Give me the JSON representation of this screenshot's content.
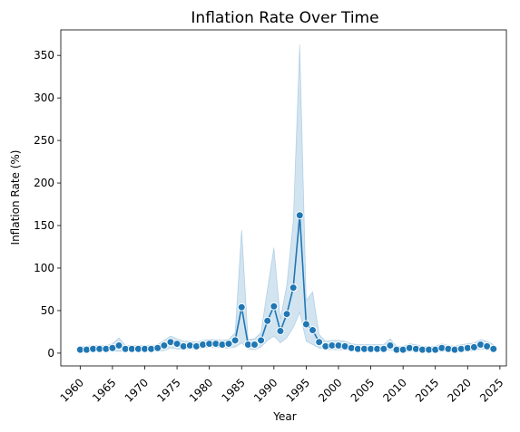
{
  "chart_data": {
    "type": "line",
    "title": "Inflation Rate Over Time",
    "xlabel": "Year",
    "ylabel": "Inflation Rate (%)",
    "xlim": [
      1957,
      2026
    ],
    "ylim": [
      -15,
      380
    ],
    "grid": false,
    "legend": "none",
    "x_ticks": [
      1960,
      1965,
      1970,
      1975,
      1980,
      1985,
      1990,
      1995,
      2000,
      2005,
      2010,
      2015,
      2020,
      2025
    ],
    "y_ticks": [
      0,
      50,
      100,
      150,
      200,
      250,
      300,
      350
    ],
    "colors": {
      "line": "#1f77b4",
      "band": "#1f77b4"
    },
    "series": [
      {
        "marker": "circle",
        "x": [
          1960,
          1961,
          1962,
          1963,
          1964,
          1965,
          1966,
          1967,
          1968,
          1969,
          1970,
          1971,
          1972,
          1973,
          1974,
          1975,
          1976,
          1977,
          1978,
          1979,
          1980,
          1981,
          1982,
          1983,
          1984,
          1985,
          1986,
          1987,
          1988,
          1989,
          1990,
          1991,
          1992,
          1993,
          1994,
          1995,
          1996,
          1997,
          1998,
          1999,
          2000,
          2001,
          2002,
          2003,
          2004,
          2005,
          2006,
          2007,
          2008,
          2009,
          2010,
          2011,
          2012,
          2013,
          2014,
          2015,
          2016,
          2017,
          2018,
          2019,
          2020,
          2021,
          2022,
          2023,
          2024
        ],
        "y": [
          4,
          4,
          5,
          5,
          5,
          6,
          9,
          5,
          5,
          5,
          5,
          5,
          6,
          9,
          13,
          11,
          8,
          9,
          8,
          10,
          11,
          11,
          10,
          11,
          15,
          54,
          10,
          10,
          15,
          38,
          55,
          26,
          46,
          77,
          162,
          34,
          27,
          13,
          8,
          9,
          9,
          8,
          6,
          5,
          5,
          5,
          5,
          5,
          9,
          4,
          4,
          6,
          5,
          4,
          4,
          4,
          6,
          5,
          4,
          5,
          6,
          7,
          10,
          8,
          5
        ],
        "ci_low": [
          1,
          1,
          2,
          2,
          2,
          2,
          2,
          2,
          2,
          2,
          2,
          2,
          2,
          3,
          6,
          5,
          4,
          5,
          5,
          6,
          7,
          7,
          6,
          6,
          7,
          12,
          5,
          4,
          7,
          15,
          20,
          12,
          18,
          30,
          48,
          14,
          10,
          6,
          4,
          4,
          4,
          4,
          3,
          2,
          2,
          2,
          2,
          2,
          4,
          1,
          1,
          2,
          2,
          2,
          2,
          2,
          2,
          2,
          2,
          2,
          2,
          3,
          5,
          4,
          2
        ],
        "ci_high": [
          8,
          8,
          9,
          9,
          9,
          11,
          18,
          9,
          9,
          9,
          9,
          9,
          10,
          15,
          20,
          17,
          14,
          14,
          13,
          15,
          16,
          16,
          15,
          16,
          24,
          145,
          16,
          17,
          24,
          75,
          124,
          40,
          80,
          155,
          363,
          62,
          72,
          22,
          14,
          15,
          15,
          14,
          11,
          10,
          10,
          10,
          10,
          10,
          17,
          8,
          8,
          11,
          10,
          8,
          8,
          8,
          11,
          9,
          8,
          10,
          11,
          12,
          16,
          14,
          10
        ]
      }
    ]
  }
}
